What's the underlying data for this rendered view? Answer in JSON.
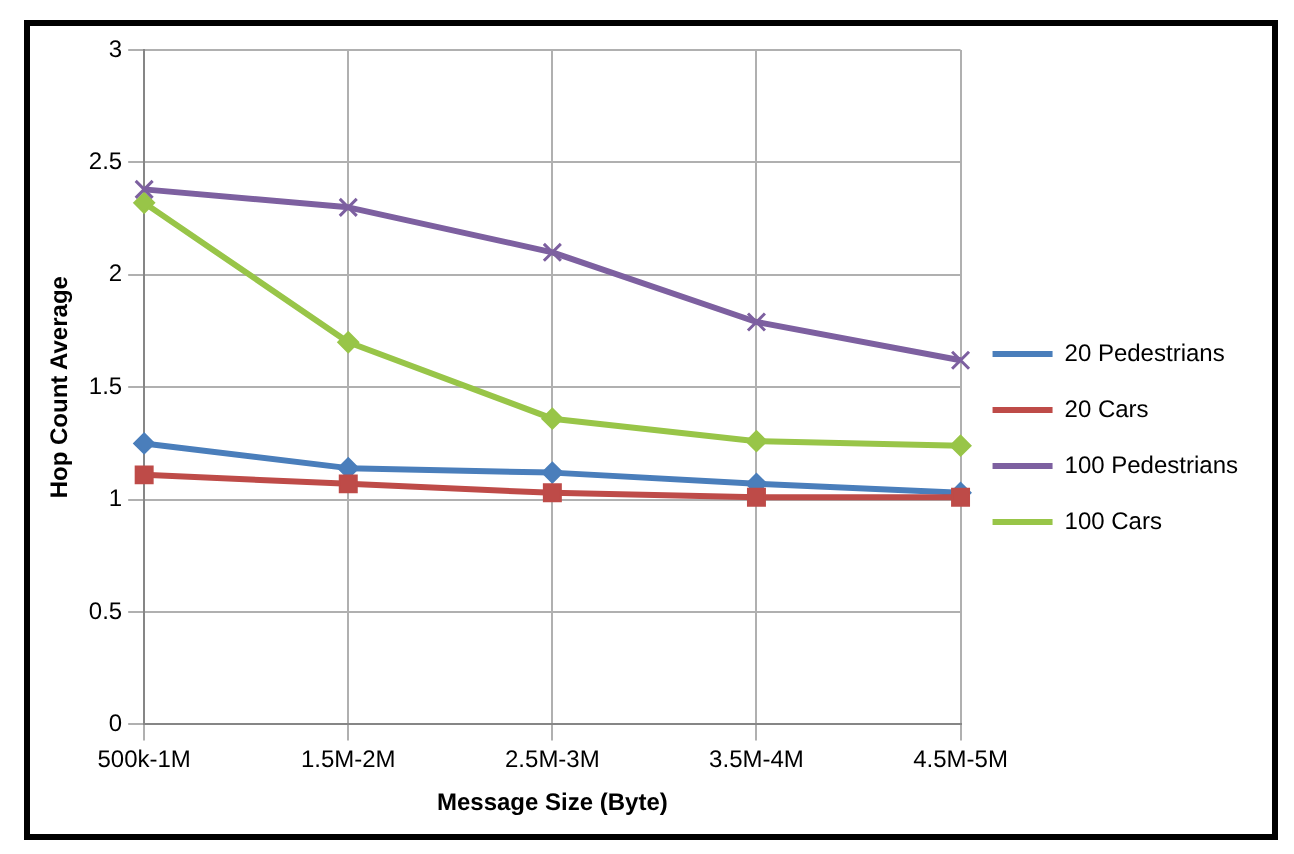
{
  "chart_data": {
    "type": "line",
    "xlabel": "Message Size (Byte)",
    "ylabel": "Hop Count Average",
    "categories": [
      "500k-1M",
      "1.5M-2M",
      "2.5M-3M",
      "3.5M-4M",
      "4.5M-5M"
    ],
    "series": [
      {
        "name": "20 Pedestrians",
        "color": "#4a7ebb",
        "marker": "diamond",
        "values": [
          1.25,
          1.14,
          1.12,
          1.07,
          1.03
        ]
      },
      {
        "name": "20 Cars",
        "color": "#be4b48",
        "marker": "square",
        "values": [
          1.11,
          1.07,
          1.03,
          1.01,
          1.01
        ]
      },
      {
        "name": "100 Pedestrians",
        "color": "#7d60a0",
        "marker": "cross",
        "values": [
          2.38,
          2.3,
          2.1,
          1.79,
          1.62
        ]
      },
      {
        "name": "100 Cars",
        "color": "#98c548",
        "marker": "diamond",
        "values": [
          2.32,
          1.7,
          1.36,
          1.26,
          1.24
        ]
      }
    ],
    "ylim": [
      0,
      3
    ],
    "yticks": [
      0,
      0.5,
      1,
      1.5,
      2,
      2.5,
      3
    ],
    "grid": true,
    "legend": "right",
    "line_style": "solid"
  }
}
